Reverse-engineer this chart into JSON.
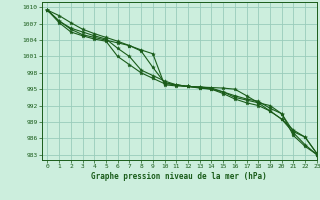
{
  "title": "Graphe pression niveau de la mer (hPa)",
  "bg_color": "#cceedd",
  "grid_color": "#99ccbb",
  "line_color": "#1a5c1a",
  "marker_color": "#1a5c1a",
  "xlim": [
    -0.5,
    23
  ],
  "ylim": [
    982,
    1011
  ],
  "yticks": [
    983,
    986,
    989,
    992,
    995,
    998,
    1001,
    1004,
    1007,
    1010
  ],
  "xticks": [
    0,
    1,
    2,
    3,
    4,
    5,
    6,
    7,
    8,
    9,
    10,
    11,
    12,
    13,
    14,
    15,
    16,
    17,
    18,
    19,
    20,
    21,
    22,
    23
  ],
  "series": [
    [
      1009.5,
      1008.5,
      1007.2,
      1006.0,
      1005.2,
      1004.5,
      1003.8,
      1003.0,
      1002.2,
      1001.5,
      995.8,
      995.6,
      995.5,
      995.4,
      995.3,
      995.2,
      995.0,
      993.8,
      992.5,
      991.0,
      989.5,
      987.5,
      986.2,
      983.2
    ],
    [
      1009.5,
      1007.5,
      1006.0,
      1005.0,
      1004.5,
      1004.0,
      1003.5,
      1003.0,
      1002.0,
      999.0,
      996.2,
      995.8,
      995.5,
      995.4,
      995.2,
      994.5,
      993.5,
      993.0,
      992.5,
      992.0,
      990.5,
      986.5,
      984.5,
      983.0
    ],
    [
      1009.5,
      1007.2,
      1005.5,
      1004.8,
      1004.2,
      1003.8,
      1001.0,
      999.5,
      998.0,
      997.0,
      996.0,
      995.8,
      995.5,
      995.3,
      995.0,
      994.2,
      993.2,
      992.5,
      992.0,
      991.0,
      989.5,
      987.0,
      984.8,
      983.0
    ],
    [
      1009.5,
      1007.5,
      1006.2,
      1005.5,
      1004.8,
      1004.2,
      1002.5,
      1001.0,
      998.5,
      997.5,
      996.5,
      995.8,
      995.5,
      995.2,
      995.0,
      994.5,
      993.8,
      993.2,
      992.8,
      991.5,
      990.5,
      987.2,
      986.2,
      983.2
    ]
  ]
}
